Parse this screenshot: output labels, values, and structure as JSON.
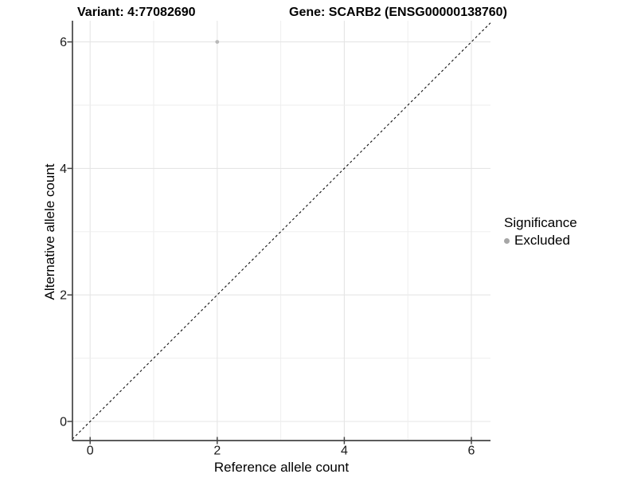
{
  "titles": {
    "variant": "Variant: 4:77082690",
    "gene": "Gene: SCARB2 (ENSG00000138760)"
  },
  "legend": {
    "title": "Significance",
    "items": [
      {
        "label": "Excluded",
        "color": "#a6a6a6"
      }
    ]
  },
  "chart_data": {
    "type": "scatter",
    "title": "Variant: 4:77082690",
    "subtitle": "Gene: SCARB2 (ENSG00000138760)",
    "xlabel": "Reference allele count",
    "ylabel": "Alternative allele count",
    "xlim": [
      -0.3,
      6.3
    ],
    "ylim": [
      -0.3,
      6.3
    ],
    "xticks": [
      0,
      2,
      4,
      6
    ],
    "yticks": [
      0,
      2,
      4,
      6
    ],
    "grid_values": [
      0,
      1,
      2,
      3,
      4,
      5,
      6
    ],
    "grid": true,
    "legend_position": "right",
    "series": [
      {
        "name": "Excluded",
        "color": "#b9b9b9",
        "points": [
          {
            "x": 2,
            "y": 6
          }
        ]
      }
    ],
    "reference_line": {
      "type": "identity",
      "style": "dashed",
      "color": "#111111",
      "from": [
        -0.28,
        -0.28
      ],
      "to": [
        6.3,
        6.3
      ]
    }
  },
  "style": {
    "background": "#ffffff",
    "grid_major": "#e5e5e5",
    "grid_minor": "#ededed",
    "axis_line": "#444444",
    "tick_color": "#444444",
    "text_color": "#1a1a1a"
  }
}
